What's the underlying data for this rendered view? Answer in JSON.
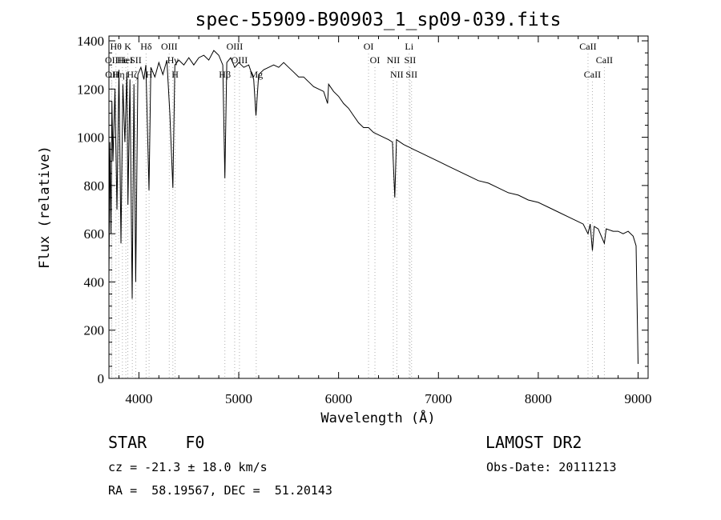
{
  "chart_data": {
    "type": "line",
    "title": "spec-55909-B90903_1_sp09-039.fits",
    "xlabel": "Wavelength (Å)",
    "ylabel": "Flux (relative)",
    "xlim": [
      3700,
      9100
    ],
    "ylim": [
      0,
      1420
    ],
    "xticks": [
      4000,
      5000,
      6000,
      7000,
      8000,
      9000
    ],
    "yticks": [
      0,
      200,
      400,
      600,
      800,
      1000,
      1200,
      1400
    ],
    "series": [
      {
        "points": [
          [
            3700,
            430
          ],
          [
            3710,
            980
          ],
          [
            3720,
            600
          ],
          [
            3730,
            1150
          ],
          [
            3740,
            900
          ],
          [
            3760,
            1200
          ],
          [
            3780,
            700
          ],
          [
            3800,
            1280
          ],
          [
            3820,
            560
          ],
          [
            3840,
            1220
          ],
          [
            3860,
            980
          ],
          [
            3880,
            1270
          ],
          [
            3890,
            720
          ],
          [
            3910,
            1240
          ],
          [
            3933,
            330
          ],
          [
            3950,
            1220
          ],
          [
            3968,
            400
          ],
          [
            3990,
            1260
          ],
          [
            4020,
            1290
          ],
          [
            4050,
            1240
          ],
          [
            4070,
            1300
          ],
          [
            4101,
            780
          ],
          [
            4120,
            1290
          ],
          [
            4160,
            1250
          ],
          [
            4200,
            1310
          ],
          [
            4240,
            1260
          ],
          [
            4280,
            1320
          ],
          [
            4310,
            1100
          ],
          [
            4340,
            790
          ],
          [
            4360,
            1300
          ],
          [
            4400,
            1320
          ],
          [
            4450,
            1300
          ],
          [
            4500,
            1330
          ],
          [
            4550,
            1300
          ],
          [
            4600,
            1330
          ],
          [
            4650,
            1340
          ],
          [
            4700,
            1320
          ],
          [
            4750,
            1360
          ],
          [
            4800,
            1340
          ],
          [
            4840,
            1300
          ],
          [
            4861,
            830
          ],
          [
            4880,
            1310
          ],
          [
            4920,
            1330
          ],
          [
            4960,
            1290
          ],
          [
            5000,
            1310
          ],
          [
            5050,
            1290
          ],
          [
            5100,
            1300
          ],
          [
            5150,
            1240
          ],
          [
            5172,
            1090
          ],
          [
            5200,
            1260
          ],
          [
            5250,
            1280
          ],
          [
            5300,
            1290
          ],
          [
            5350,
            1300
          ],
          [
            5400,
            1290
          ],
          [
            5450,
            1310
          ],
          [
            5500,
            1290
          ],
          [
            5550,
            1270
          ],
          [
            5600,
            1250
          ],
          [
            5650,
            1250
          ],
          [
            5700,
            1230
          ],
          [
            5750,
            1210
          ],
          [
            5800,
            1200
          ],
          [
            5850,
            1190
          ],
          [
            5890,
            1140
          ],
          [
            5900,
            1220
          ],
          [
            5950,
            1190
          ],
          [
            6000,
            1170
          ],
          [
            6050,
            1140
          ],
          [
            6100,
            1120
          ],
          [
            6150,
            1090
          ],
          [
            6200,
            1060
          ],
          [
            6250,
            1040
          ],
          [
            6300,
            1040
          ],
          [
            6350,
            1020
          ],
          [
            6400,
            1010
          ],
          [
            6450,
            1000
          ],
          [
            6500,
            990
          ],
          [
            6540,
            980
          ],
          [
            6563,
            750
          ],
          [
            6580,
            990
          ],
          [
            6650,
            970
          ],
          [
            6700,
            960
          ],
          [
            6750,
            950
          ],
          [
            6800,
            940
          ],
          [
            6900,
            920
          ],
          [
            7000,
            900
          ],
          [
            7100,
            880
          ],
          [
            7200,
            860
          ],
          [
            7300,
            840
          ],
          [
            7400,
            820
          ],
          [
            7500,
            810
          ],
          [
            7600,
            790
          ],
          [
            7700,
            770
          ],
          [
            7800,
            760
          ],
          [
            7900,
            740
          ],
          [
            8000,
            730
          ],
          [
            8100,
            710
          ],
          [
            8200,
            690
          ],
          [
            8300,
            670
          ],
          [
            8400,
            650
          ],
          [
            8450,
            640
          ],
          [
            8498,
            600
          ],
          [
            8520,
            640
          ],
          [
            8542,
            530
          ],
          [
            8560,
            630
          ],
          [
            8600,
            620
          ],
          [
            8662,
            560
          ],
          [
            8680,
            620
          ],
          [
            8750,
            610
          ],
          [
            8800,
            610
          ],
          [
            8850,
            600
          ],
          [
            8900,
            610
          ],
          [
            8950,
            590
          ],
          [
            8980,
            550
          ],
          [
            9000,
            60
          ]
        ]
      }
    ],
    "line_markers": [
      {
        "wave": 3727,
        "label": "OII",
        "row": 2
      },
      {
        "wave": 3729,
        "label": "OII",
        "row": 3
      },
      {
        "wave": 3770,
        "label": "Hθ",
        "row": 1
      },
      {
        "wave": 3798,
        "label": "Hη",
        "row": 3
      },
      {
        "wave": 3835,
        "label": "He",
        "row": 2
      },
      {
        "wave": 3869,
        "label": "HeI",
        "row": 2
      },
      {
        "wave": 3889,
        "label": "K",
        "row": 1
      },
      {
        "wave": 3934,
        "label": "Hζ",
        "row": 3
      },
      {
        "wave": 3968,
        "label": "SII",
        "row": 2
      },
      {
        "wave": 4072,
        "label": "Hδ",
        "row": 1
      },
      {
        "wave": 4102,
        "label": "H",
        "row": 3
      },
      {
        "wave": 4304,
        "label": "OIII",
        "row": 1
      },
      {
        "wave": 4340,
        "label": "Hγ",
        "row": 2
      },
      {
        "wave": 4363,
        "label": "H",
        "row": 3
      },
      {
        "wave": 4861,
        "label": "Hβ",
        "row": 3
      },
      {
        "wave": 4959,
        "label": "OIII",
        "row": 1
      },
      {
        "wave": 5007,
        "label": "OIII",
        "row": 2
      },
      {
        "wave": 5175,
        "label": "Mg",
        "row": 3
      },
      {
        "wave": 6300,
        "label": "OI",
        "row": 1
      },
      {
        "wave": 6364,
        "label": "OI",
        "row": 2
      },
      {
        "wave": 6548,
        "label": "NII",
        "row": 2
      },
      {
        "wave": 6583,
        "label": "NII",
        "row": 3
      },
      {
        "wave": 6707,
        "label": "Li",
        "row": 1
      },
      {
        "wave": 6716,
        "label": "SII",
        "row": 2
      },
      {
        "wave": 6731,
        "label": "SII",
        "row": 3
      },
      {
        "wave": 8498,
        "label": "CaII",
        "row": 1
      },
      {
        "wave": 8542,
        "label": "CaII",
        "row": 3
      },
      {
        "wave": 8662,
        "label": "CaII",
        "row": 2
      }
    ],
    "grid": false,
    "line_color": "#000000",
    "marker_color": "#b0b0b0"
  },
  "info": {
    "class": "STAR    F0",
    "cz": "cz = -21.3 ± 18.0 km/s",
    "radec": "RA =  58.19567, DEC =  51.20143",
    "survey": "LAMOST DR2",
    "obsdate": "Obs-Date: 20111213"
  }
}
